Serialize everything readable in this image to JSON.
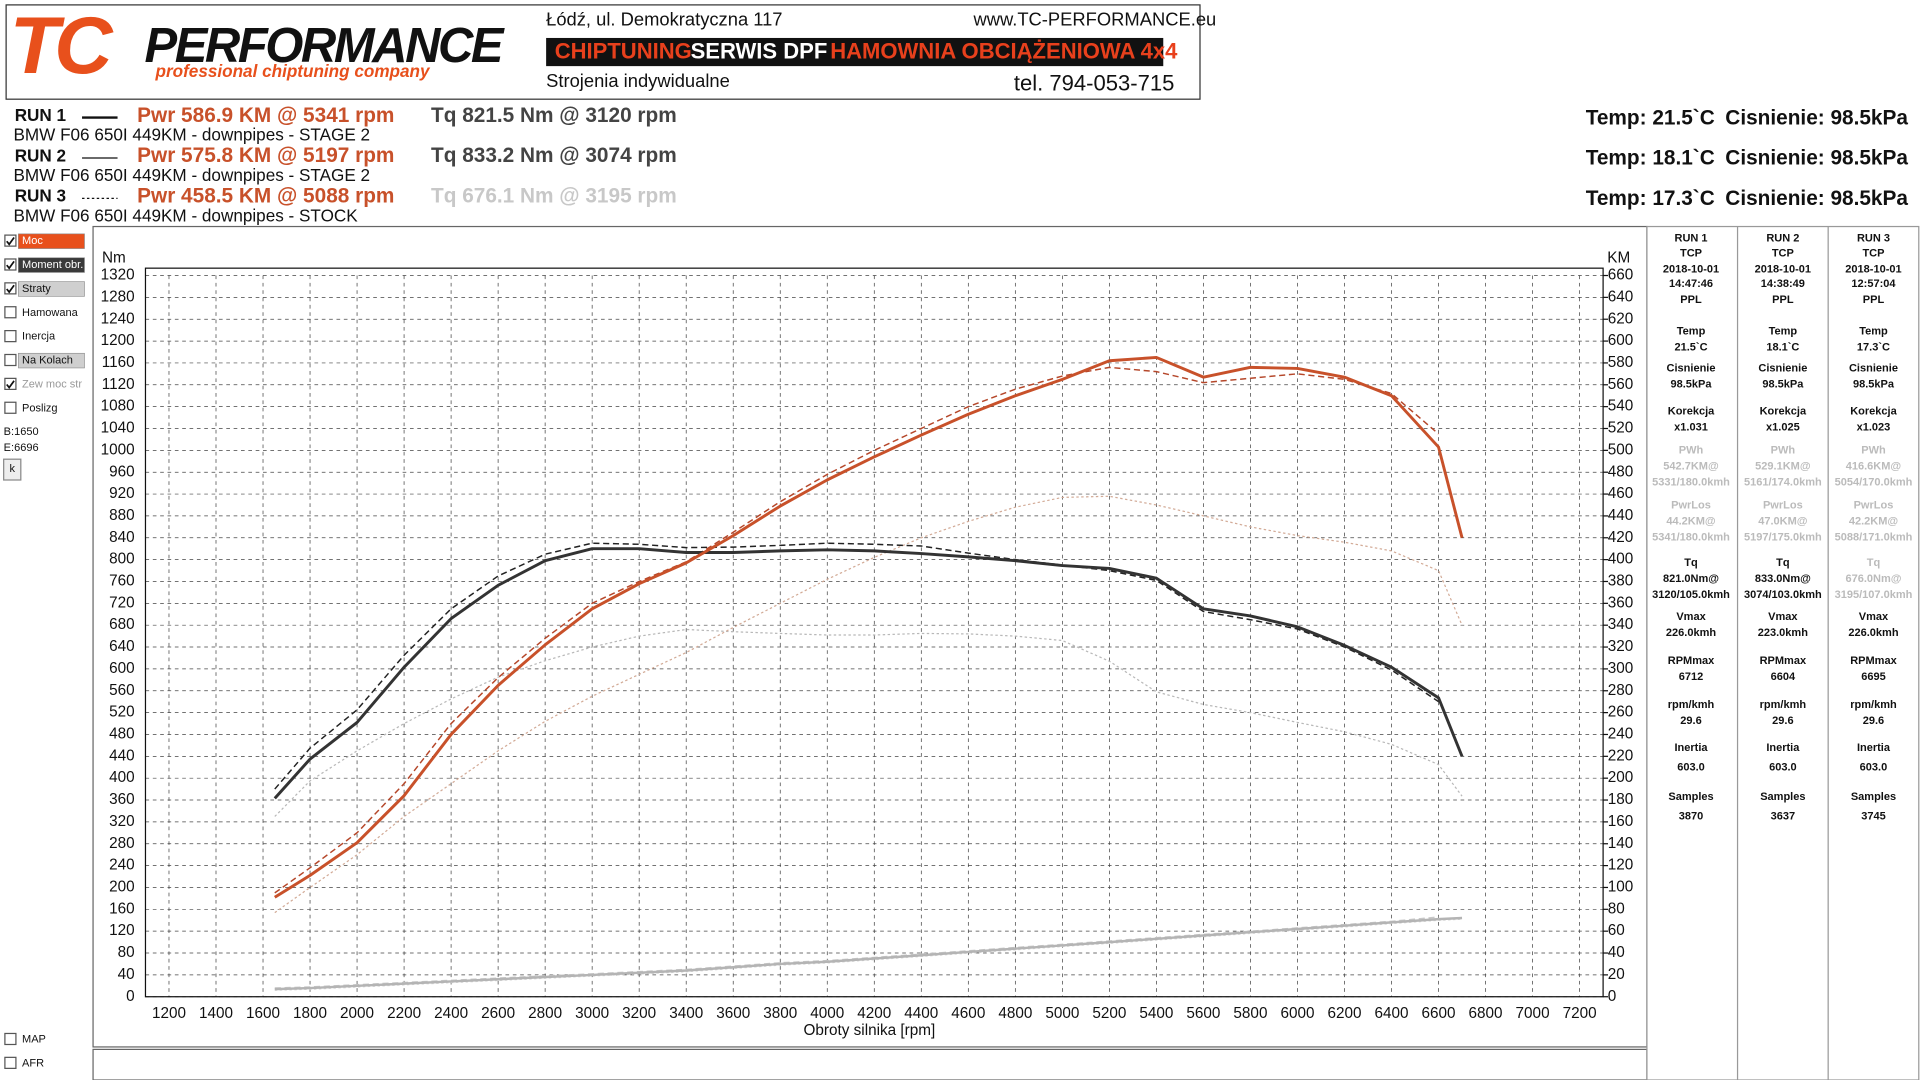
{
  "header": {
    "logo_tc": "TC",
    "logo_performance": "PERFORMANCE",
    "logo_tagline": "professional chiptuning company",
    "address": "Łódź, ul. Demokratyczna 117",
    "website": "www.TC-PERFORMANCE.eu",
    "services": [
      "CHIPTUNING",
      "SERWIS DPF",
      "HAMOWNIA OBCIĄŻENIOWA 4x4"
    ],
    "tuning": "Strojenia indywidualne",
    "phone": "tel. 794-053-715"
  },
  "runs": [
    {
      "label": "RUN 1",
      "power": "Pwr  586.9 KM @ 5341 rpm",
      "torque": "Tq 821.5 Nm @ 3120 rpm",
      "car": "BMW F06 650I 449KM - downpipes - STAGE 2",
      "temp": "Temp: 21.5`C",
      "pressure": "Cisnienie: 98.5kPa"
    },
    {
      "label": "RUN 2",
      "power": "Pwr  575.8 KM @ 5197 rpm",
      "torque": "Tq 833.2 Nm @ 3074 rpm",
      "car": "BMW F06 650I 449KM - downpipes - STAGE 2",
      "temp": "Temp: 18.1`C",
      "pressure": "Cisnienie: 98.5kPa"
    },
    {
      "label": "RUN 3",
      "power": "Pwr  458.5 KM @ 5088 rpm",
      "torque": "Tq 676.1 Nm @ 3195 rpm",
      "car": "BMW F06 650I 449KM - downpipes - STOCK",
      "temp": "Temp: 17.3`C",
      "pressure": "Cisnienie: 98.5kPa"
    }
  ],
  "options": [
    {
      "label": "Moc",
      "checked": true
    },
    {
      "label": "Moment obr.",
      "checked": true
    },
    {
      "label": "Straty",
      "checked": true
    },
    {
      "label": "Hamowana",
      "checked": false
    },
    {
      "label": "Inercja",
      "checked": false
    },
    {
      "label": "Na Kolach",
      "checked": false
    },
    {
      "label": "Zew moc str",
      "checked": true
    },
    {
      "label": "Poslizg",
      "checked": false
    }
  ],
  "range": [
    "B:1650",
    "E:6696"
  ],
  "button": "k",
  "extra_options": [
    {
      "label": "MAP",
      "checked": false
    },
    {
      "label": "AFR",
      "checked": false
    }
  ],
  "stats": [
    {
      "head": [
        "RUN 1",
        "TCP",
        "2018-10-01",
        "14:47:46",
        "PPL"
      ],
      "items": [
        [
          "Temp",
          "21.5`C"
        ],
        [
          "Cisnienie",
          "98.5kPa"
        ],
        [
          "Korekcja",
          "x1.031"
        ],
        [
          "PWh",
          "542.7KM@",
          "5331/180.0kmh"
        ],
        [
          "PwrLos",
          "44.2KM@",
          "5341/180.0kmh"
        ],
        [
          "Tq",
          "821.0Nm@",
          "3120/105.0kmh"
        ],
        [
          "Vmax",
          "226.0kmh"
        ],
        [
          "RPMmax",
          "6712"
        ],
        [
          "rpm/kmh",
          "29.6"
        ],
        [
          "Inertia",
          "603.0"
        ],
        [
          "Samples",
          "3870"
        ]
      ]
    },
    {
      "head": [
        "RUN 2",
        "TCP",
        "2018-10-01",
        "14:38:49",
        "PPL"
      ],
      "items": [
        [
          "Temp",
          "18.1`C"
        ],
        [
          "Cisnienie",
          "98.5kPa"
        ],
        [
          "Korekcja",
          "x1.025"
        ],
        [
          "PWh",
          "529.1KM@",
          "5161/174.0kmh"
        ],
        [
          "PwrLos",
          "47.0KM@",
          "5197/175.0kmh"
        ],
        [
          "Tq",
          "833.0Nm@",
          "3074/103.0kmh"
        ],
        [
          "Vmax",
          "223.0kmh"
        ],
        [
          "RPMmax",
          "6604"
        ],
        [
          "rpm/kmh",
          "29.6"
        ],
        [
          "Inertia",
          "603.0"
        ],
        [
          "Samples",
          "3637"
        ]
      ]
    },
    {
      "head": [
        "RUN 3",
        "TCP",
        "2018-10-01",
        "12:57:04",
        "PPL"
      ],
      "items": [
        [
          "Temp",
          "17.3`C"
        ],
        [
          "Cisnienie",
          "98.5kPa"
        ],
        [
          "Korekcja",
          "x1.023"
        ],
        [
          "PWh",
          "416.6KM@",
          "5054/170.0kmh"
        ],
        [
          "PwrLos",
          "42.2KM@",
          "5088/171.0kmh"
        ],
        [
          "Tq",
          "676.0Nm@",
          "3195/107.0kmh"
        ],
        [
          "Vmax",
          "226.0kmh"
        ],
        [
          "RPMmax",
          "6695"
        ],
        [
          "rpm/kmh",
          "29.6"
        ],
        [
          "Inertia",
          "603.0"
        ],
        [
          "Samples",
          "3745"
        ]
      ]
    }
  ],
  "chart_data": {
    "type": "line",
    "y_label": "Nm",
    "y2_label": "KM",
    "x_label": "Obroty silnika [rpm]",
    "xlim": [
      1100,
      7300
    ],
    "xticks": [
      1200,
      1400,
      1600,
      1800,
      2000,
      2200,
      2400,
      2600,
      2800,
      3000,
      3200,
      3400,
      3600,
      3800,
      4000,
      4200,
      4400,
      4600,
      4800,
      5000,
      5200,
      5400,
      5600,
      5800,
      6000,
      6200,
      6400,
      6600,
      6800,
      7000,
      7200
    ],
    "ylim": [
      0,
      1320
    ],
    "yticks": [
      0,
      40,
      80,
      120,
      160,
      200,
      240,
      280,
      320,
      360,
      400,
      440,
      480,
      520,
      560,
      600,
      640,
      680,
      720,
      760,
      800,
      840,
      880,
      920,
      960,
      1000,
      1040,
      1080,
      1120,
      1160,
      1200,
      1240,
      1280,
      1320
    ],
    "y2lim": [
      0,
      660
    ],
    "y2ticks": [
      0,
      20,
      40,
      60,
      80,
      100,
      120,
      140,
      160,
      180,
      200,
      220,
      240,
      260,
      280,
      300,
      320,
      340,
      360,
      380,
      400,
      420,
      440,
      460,
      480,
      500,
      520,
      540,
      560,
      580,
      600,
      620,
      640,
      660
    ],
    "grid": true,
    "x": [
      1650,
      1800,
      2000,
      2200,
      2400,
      2600,
      2800,
      3000,
      3200,
      3400,
      3600,
      3800,
      4000,
      4200,
      4400,
      4600,
      4800,
      5000,
      5200,
      5400,
      5600,
      5800,
      6000,
      6200,
      6400,
      6600,
      6700
    ],
    "series": [
      {
        "color": "#c8c8c8",
        "axis": "y2",
        "line_style": "dashed",
        "width": 1.2,
        "values": [
          8,
          9,
          11,
          13,
          15,
          17,
          19,
          21,
          23,
          25,
          28,
          31,
          33,
          36,
          39,
          42,
          45,
          48,
          51,
          54,
          57,
          60,
          63,
          66,
          69,
          73,
          null
        ]
      },
      {
        "color": "#d6d6d6",
        "axis": "y2",
        "line_style": "dotted",
        "width": 1.2,
        "values": [
          6,
          7,
          9,
          11,
          13,
          15,
          17,
          19,
          21,
          23,
          26,
          29,
          31,
          34,
          37,
          40,
          43,
          46,
          49,
          52,
          55,
          58,
          61,
          64,
          67,
          70,
          71
        ]
      },
      {
        "color": "#b4b4b4",
        "axis": "y2",
        "line_style": "solid",
        "width": 2,
        "values": [
          7,
          8,
          10,
          12,
          14,
          16,
          18,
          20,
          22,
          24,
          27,
          30,
          32,
          35,
          38,
          41,
          44,
          47,
          50,
          53,
          56,
          59,
          62,
          65,
          68,
          71,
          72
        ]
      },
      {
        "color": "#b8b8b8",
        "axis": "y",
        "line_style": "dotted",
        "width": 1,
        "values": [
          330,
          395,
          450,
          500,
          545,
          585,
          615,
          640,
          660,
          672,
          668,
          665,
          662,
          662,
          665,
          664,
          660,
          652,
          614,
          558,
          535,
          520,
          502,
          485,
          462,
          425,
          367
        ]
      },
      {
        "color": "#d2aa96",
        "axis": "y2",
        "line_style": "dotted",
        "width": 1,
        "values": [
          77,
          100,
          130,
          165,
          195,
          225,
          252,
          275,
          295,
          315,
          338,
          360,
          382,
          402,
          420,
          435,
          448,
          457,
          458,
          450,
          440,
          430,
          422,
          416,
          408,
          390,
          340
        ]
      },
      {
        "color": "#222222",
        "axis": "y",
        "line_style": "dashed",
        "width": 1.2,
        "values": [
          380,
          455,
          525,
          625,
          710,
          770,
          810,
          830,
          828,
          822,
          823,
          826,
          830,
          828,
          825,
          812,
          800,
          790,
          780,
          762,
          705,
          690,
          673,
          640,
          598,
          540,
          null
        ]
      },
      {
        "color": "#b5472a",
        "axis": "y2",
        "line_style": "dashed",
        "width": 1.2,
        "values": [
          95,
          118,
          150,
          195,
          250,
          292,
          328,
          360,
          380,
          398,
          425,
          453,
          478,
          500,
          520,
          540,
          556,
          568,
          576,
          572,
          562,
          566,
          570,
          565,
          552,
          515,
          null
        ]
      },
      {
        "color": "#333333",
        "axis": "y",
        "line_style": "solid",
        "width": 2.4,
        "values": [
          363,
          435,
          502,
          603,
          692,
          753,
          798,
          820,
          820,
          813,
          813,
          816,
          818,
          816,
          811,
          805,
          798,
          789,
          784,
          766,
          710,
          697,
          677,
          643,
          603,
          547,
          440
        ]
      },
      {
        "color": "#c8512a",
        "axis": "y2",
        "line_style": "solid",
        "width": 2.4,
        "values": [
          91,
          111,
          141,
          184,
          240,
          285,
          322,
          355,
          378,
          397,
          422,
          449,
          473,
          494,
          514,
          533,
          550,
          565,
          582,
          585,
          567,
          576,
          575,
          567,
          550,
          503,
          420
        ]
      }
    ]
  }
}
